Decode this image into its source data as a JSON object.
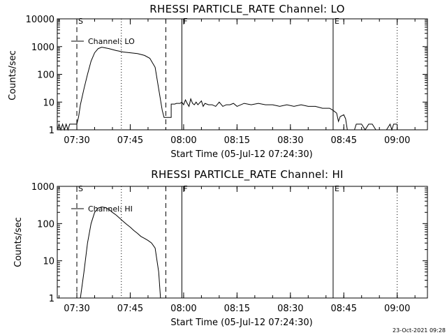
{
  "footer_timestamp": "23-Oct-2021 09:28",
  "chart_data": [
    {
      "type": "line",
      "title": "RHESSI PARTICLE_RATE Channel: LO",
      "xlabel": "Start Time (05-Jul-12 07:24:30)",
      "ylabel": "Counts/sec",
      "yscale": "log",
      "xlim": [
        "07:24:30",
        "09:08:30"
      ],
      "ylim": [
        1,
        10000
      ],
      "x_ticks": [
        "07:30",
        "07:45",
        "08:00",
        "08:15",
        "08:30",
        "08:45",
        "09:00"
      ],
      "y_ticks": [
        "1",
        "10",
        "100",
        "1000",
        "10000"
      ],
      "legend": {
        "placement": "top-left",
        "entries": [
          "Channel: LO"
        ]
      },
      "markers": [
        {
          "label": "S",
          "time": "07:30:00",
          "style": "dashed"
        },
        {
          "label": "",
          "time": "07:55:00",
          "style": "dashed"
        },
        {
          "label": "",
          "time": "07:42:30",
          "style": "dotted"
        },
        {
          "label": "F",
          "time": "07:59:30",
          "style": "solid"
        },
        {
          "label": "E",
          "time": "08:42:00",
          "style": "solid"
        },
        {
          "label": "",
          "time": "09:00:00",
          "style": "dotted"
        }
      ],
      "series": [
        {
          "name": "Channel: LO",
          "points": [
            [
              "07:24:30",
              1
            ],
            [
              "07:25:00",
              1.6
            ],
            [
              "07:25:30",
              1
            ],
            [
              "07:26:00",
              1.6
            ],
            [
              "07:26:30",
              1
            ],
            [
              "07:27:00",
              1.6
            ],
            [
              "07:27:30",
              1
            ],
            [
              "07:28:00",
              1.6
            ],
            [
              "07:28:30",
              1.6
            ],
            [
              "07:29:00",
              1.6
            ],
            [
              "07:30:00",
              1.6
            ],
            [
              "07:30:30",
              3
            ],
            [
              "07:31:00",
              8
            ],
            [
              "07:32:00",
              30
            ],
            [
              "07:33:00",
              100
            ],
            [
              "07:34:00",
              300
            ],
            [
              "07:35:00",
              600
            ],
            [
              "07:36:00",
              850
            ],
            [
              "07:37:00",
              950
            ],
            [
              "07:38:00",
              900
            ],
            [
              "07:39:00",
              850
            ],
            [
              "07:40:00",
              780
            ],
            [
              "07:41:00",
              720
            ],
            [
              "07:42:00",
              680
            ],
            [
              "07:43:00",
              640
            ],
            [
              "07:45:00",
              600
            ],
            [
              "07:47:00",
              560
            ],
            [
              "07:49:00",
              480
            ],
            [
              "07:50:30",
              380
            ],
            [
              "07:52:00",
              180
            ],
            [
              "07:53:00",
              30
            ],
            [
              "07:54:00",
              5
            ],
            [
              "07:54:30",
              2.8
            ],
            [
              "07:56:30",
              2.8
            ],
            [
              "07:56:30",
              8.5
            ],
            [
              "07:57:30",
              8.5
            ],
            [
              "07:58:00",
              9
            ],
            [
              "07:59:00",
              9
            ],
            [
              "07:59:30",
              10
            ],
            [
              "08:00:00",
              8
            ],
            [
              "08:00:30",
              12
            ],
            [
              "08:01:00",
              9
            ],
            [
              "08:01:30",
              7
            ],
            [
              "08:02:00",
              13
            ],
            [
              "08:02:30",
              9
            ],
            [
              "08:03:00",
              8
            ],
            [
              "08:03:30",
              10
            ],
            [
              "08:04:00",
              8
            ],
            [
              "08:05:00",
              11
            ],
            [
              "08:05:30",
              7
            ],
            [
              "08:06:00",
              9
            ],
            [
              "08:07:00",
              8
            ],
            [
              "08:08:00",
              8
            ],
            [
              "08:09:00",
              7
            ],
            [
              "08:10:00",
              10
            ],
            [
              "08:11:00",
              7
            ],
            [
              "08:12:00",
              8
            ],
            [
              "08:13:00",
              8
            ],
            [
              "08:14:00",
              9
            ],
            [
              "08:15:00",
              7
            ],
            [
              "08:17:00",
              9
            ],
            [
              "08:19:00",
              8
            ],
            [
              "08:21:00",
              9
            ],
            [
              "08:23:00",
              8
            ],
            [
              "08:25:00",
              8
            ],
            [
              "08:27:00",
              7
            ],
            [
              "08:29:00",
              8
            ],
            [
              "08:31:00",
              7
            ],
            [
              "08:33:00",
              8
            ],
            [
              "08:35:00",
              7
            ],
            [
              "08:37:00",
              7
            ],
            [
              "08:39:00",
              6
            ],
            [
              "08:41:00",
              6
            ],
            [
              "08:42:00",
              5
            ],
            [
              "08:43:00",
              4
            ],
            [
              "08:43:30",
              2
            ],
            [
              "08:44:00",
              3
            ],
            [
              "08:45:00",
              3.5
            ],
            [
              "08:45:30",
              2.5
            ],
            [
              "08:46:00",
              1
            ],
            [
              "08:47:00",
              1
            ],
            [
              "08:48:00",
              1
            ],
            [
              "08:48:30",
              1.6
            ],
            [
              "08:49:00",
              1.6
            ],
            [
              "08:50:00",
              1.6
            ],
            [
              "08:51:00",
              1
            ],
            [
              "08:52:00",
              1.6
            ],
            [
              "08:53:00",
              1.6
            ],
            [
              "08:54:00",
              1
            ],
            [
              "08:55:00",
              1
            ],
            [
              "08:56:00",
              1
            ],
            [
              "08:57:00",
              1
            ],
            [
              "08:58:00",
              1.6
            ],
            [
              "08:58:30",
              1
            ],
            [
              "08:59:00",
              1.6
            ],
            [
              "09:00:00",
              1.6
            ]
          ]
        }
      ]
    },
    {
      "type": "line",
      "title": "RHESSI PARTICLE_RATE Channel: HI",
      "xlabel": "Start Time (05-Jul-12 07:24:30)",
      "ylabel": "Counts/sec",
      "yscale": "log",
      "xlim": [
        "07:24:30",
        "09:08:30"
      ],
      "ylim": [
        1,
        1000
      ],
      "x_ticks": [
        "07:30",
        "07:45",
        "08:00",
        "08:15",
        "08:30",
        "08:45",
        "09:00"
      ],
      "y_ticks": [
        "1",
        "10",
        "100",
        "1000"
      ],
      "legend": {
        "placement": "top-left",
        "entries": [
          "Channel: HI"
        ]
      },
      "markers": [
        {
          "label": "S",
          "time": "07:30:00",
          "style": "dashed"
        },
        {
          "label": "",
          "time": "07:55:00",
          "style": "dashed"
        },
        {
          "label": "",
          "time": "07:42:30",
          "style": "dotted"
        },
        {
          "label": "F",
          "time": "07:59:30",
          "style": "solid"
        },
        {
          "label": "E",
          "time": "08:42:00",
          "style": "solid"
        },
        {
          "label": "",
          "time": "09:00:00",
          "style": "dotted"
        }
      ],
      "series": [
        {
          "name": "Channel: HI",
          "points": [
            [
              "07:31:00",
              1
            ],
            [
              "07:32:00",
              5
            ],
            [
              "07:33:00",
              30
            ],
            [
              "07:34:00",
              100
            ],
            [
              "07:35:00",
              200
            ],
            [
              "07:36:00",
              260
            ],
            [
              "07:37:00",
              280
            ],
            [
              "07:38:00",
              270
            ],
            [
              "07:39:00",
              240
            ],
            [
              "07:40:00",
              200
            ],
            [
              "07:41:00",
              170
            ],
            [
              "07:42:00",
              140
            ],
            [
              "07:43:00",
              115
            ],
            [
              "07:44:00",
              95
            ],
            [
              "07:45:00",
              80
            ],
            [
              "07:46:00",
              65
            ],
            [
              "07:47:00",
              55
            ],
            [
              "07:48:00",
              45
            ],
            [
              "07:49:00",
              40
            ],
            [
              "07:50:00",
              35
            ],
            [
              "07:51:00",
              30
            ],
            [
              "07:52:00",
              22
            ],
            [
              "07:53:00",
              5
            ],
            [
              "07:53:30",
              1
            ]
          ]
        }
      ]
    }
  ]
}
